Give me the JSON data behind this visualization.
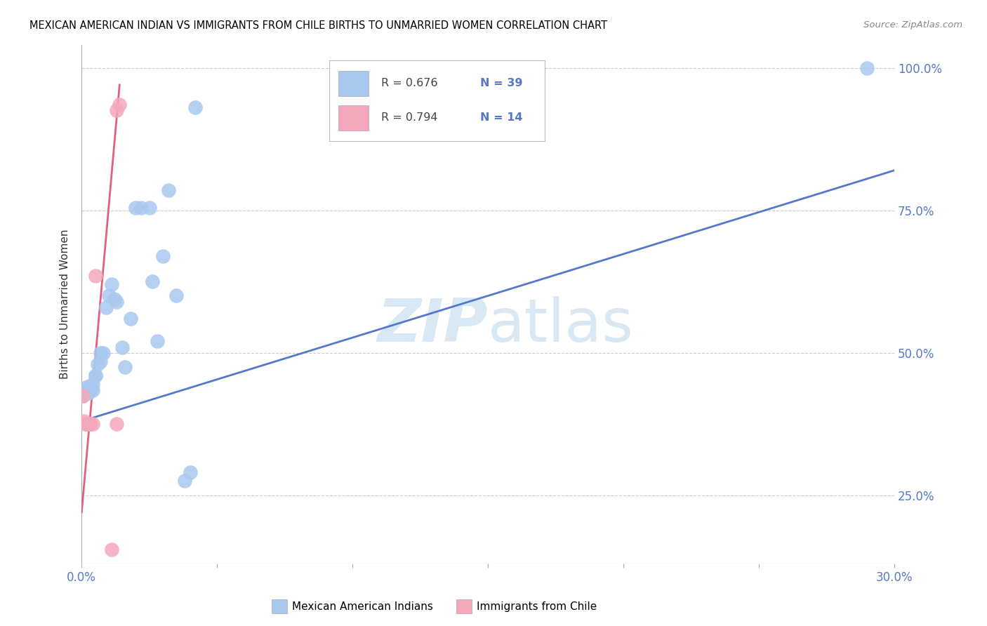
{
  "title": "MEXICAN AMERICAN INDIAN VS IMMIGRANTS FROM CHILE BIRTHS TO UNMARRIED WOMEN CORRELATION CHART",
  "source": "Source: ZipAtlas.com",
  "ylabel": "Births to Unmarried Women",
  "xmin": 0.0,
  "xmax": 0.3,
  "ymin": 0.13,
  "ymax": 1.04,
  "yticks": [
    0.25,
    0.5,
    0.75,
    1.0
  ],
  "ytick_labels": [
    "25.0%",
    "50.0%",
    "75.0%",
    "100.0%"
  ],
  "xticks": [
    0.0,
    0.05,
    0.1,
    0.15,
    0.2,
    0.25,
    0.3
  ],
  "xtick_labels": [
    "0.0%",
    "",
    "",
    "",
    "",
    "",
    "30.0%"
  ],
  "blue_R": 0.676,
  "blue_N": 39,
  "pink_R": 0.794,
  "pink_N": 14,
  "blue_color": "#A8C8EE",
  "pink_color": "#F4A8BC",
  "blue_line_color": "#5578C8",
  "pink_line_color": "#E06080",
  "blue_label": "Mexican American Indians",
  "pink_label": "Immigrants from Chile",
  "watermark_zip": "ZIP",
  "watermark_atlas": "atlas",
  "watermark_color": "#D8E8F4",
  "blue_x": [
    0.0005,
    0.001,
    0.0015,
    0.002,
    0.002,
    0.0025,
    0.0025,
    0.003,
    0.003,
    0.003,
    0.0035,
    0.004,
    0.004,
    0.005,
    0.005,
    0.006,
    0.007,
    0.007,
    0.008,
    0.009,
    0.01,
    0.011,
    0.012,
    0.013,
    0.015,
    0.016,
    0.018,
    0.02,
    0.022,
    0.025,
    0.026,
    0.028,
    0.03,
    0.032,
    0.035,
    0.038,
    0.04,
    0.042,
    0.29
  ],
  "blue_y": [
    0.425,
    0.435,
    0.43,
    0.44,
    0.435,
    0.435,
    0.43,
    0.435,
    0.435,
    0.44,
    0.44,
    0.445,
    0.435,
    0.46,
    0.46,
    0.48,
    0.5,
    0.485,
    0.5,
    0.58,
    0.6,
    0.62,
    0.595,
    0.59,
    0.51,
    0.475,
    0.56,
    0.755,
    0.755,
    0.755,
    0.625,
    0.52,
    0.67,
    0.785,
    0.6,
    0.275,
    0.29,
    0.93,
    1.0
  ],
  "pink_x": [
    0.0005,
    0.001,
    0.0015,
    0.002,
    0.002,
    0.002,
    0.003,
    0.003,
    0.004,
    0.005,
    0.011,
    0.013,
    0.013,
    0.014
  ],
  "pink_y": [
    0.425,
    0.38,
    0.375,
    0.375,
    0.375,
    0.375,
    0.375,
    0.375,
    0.375,
    0.635,
    0.155,
    0.925,
    0.375,
    0.935
  ],
  "blue_line_x0": 0.0,
  "blue_line_x1": 0.3,
  "blue_line_y0": 0.38,
  "blue_line_y1": 0.82,
  "pink_line_x0": 0.0,
  "pink_line_x1": 0.014,
  "pink_line_y0": 0.22,
  "pink_line_y1": 0.97
}
